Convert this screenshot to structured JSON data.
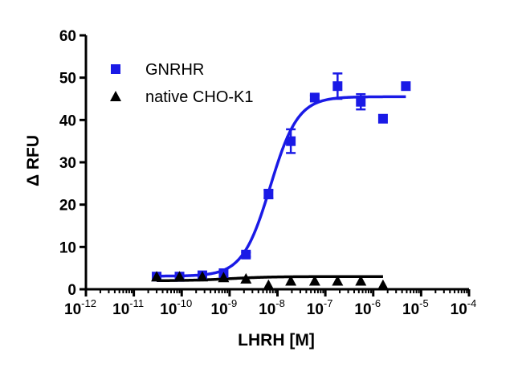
{
  "chart_data": {
    "type": "scatter",
    "xlabel": "LHRH [M]",
    "ylabel": "Δ RFU",
    "x_scale": "log",
    "xlim": [
      1e-12,
      0.0001
    ],
    "ylim": [
      0,
      60
    ],
    "y_ticks": [
      0,
      10,
      20,
      30,
      40,
      50,
      60
    ],
    "x_ticks": [
      {
        "base": "10",
        "exp": "-12"
      },
      {
        "base": "10",
        "exp": "-11"
      },
      {
        "base": "10",
        "exp": "-10"
      },
      {
        "base": "10",
        "exp": "-9"
      },
      {
        "base": "10",
        "exp": "-8"
      },
      {
        "base": "10",
        "exp": "-7"
      },
      {
        "base": "10",
        "exp": "-6"
      },
      {
        "base": "10",
        "exp": "-5"
      },
      {
        "base": "10",
        "exp": "-4"
      }
    ],
    "legend_position": "top-left",
    "grid": false,
    "series": [
      {
        "name": "GNRHR",
        "color": "#1a1ae6",
        "marker": "square",
        "x": [
          3e-11,
          9e-11,
          2.7e-10,
          7.5e-10,
          2.2e-09,
          6.5e-09,
          1.9e-08,
          6e-08,
          1.8e-07,
          5.5e-07,
          1.6e-06,
          4.8e-06
        ],
        "y": [
          3,
          3,
          3.3,
          3.8,
          8.2,
          22.5,
          35,
          45.3,
          48,
          44.3,
          40.3,
          48
        ],
        "err": [
          0.3,
          0.3,
          0.3,
          0.3,
          0.5,
          1,
          2.8,
          0.5,
          3,
          1.8,
          0.3,
          0.3
        ],
        "fit": {
          "bottom": 3.1,
          "top": 45.5,
          "log_ec50": -8.15,
          "hill": 1.5
        }
      },
      {
        "name": "native CHO-K1",
        "color": "#000000",
        "marker": "triangle",
        "x": [
          3e-11,
          9e-11,
          2.7e-10,
          7.5e-10,
          2.2e-09,
          6.5e-09,
          1.9e-08,
          6e-08,
          1.8e-07,
          5.5e-07,
          1.6e-06
        ],
        "y": [
          3,
          3,
          3,
          2.8,
          2.5,
          1,
          2,
          2,
          2,
          2,
          1
        ],
        "err": [
          0.2,
          0.2,
          0.2,
          0.2,
          0.2,
          0.2,
          0.2,
          0.2,
          0.2,
          0.2,
          0.2
        ],
        "fit": {
          "bottom": 2.0,
          "top": 3.0,
          "log_ec50": -9.0,
          "hill": 1.0
        }
      }
    ]
  }
}
